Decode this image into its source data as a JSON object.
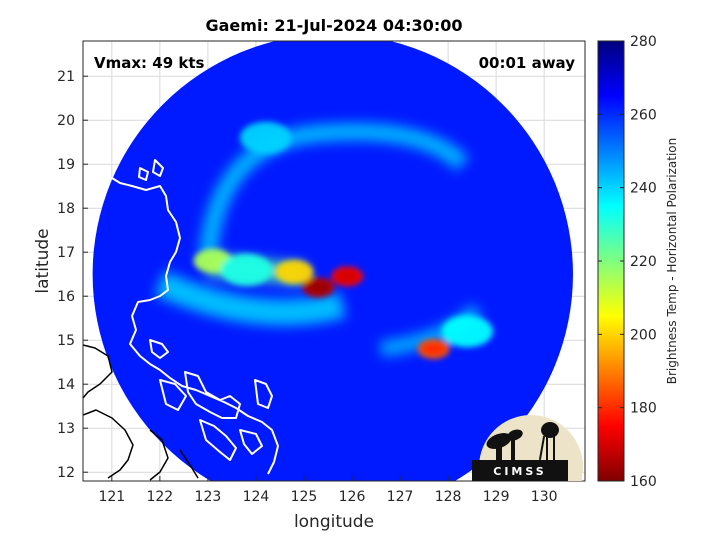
{
  "chart_data": {
    "type": "heatmap",
    "title": "Gaemi: 21-Jul-2024 04:30:00",
    "xlabel": "longitude",
    "ylabel": "latitude",
    "xlim": [
      120.4,
      130.85
    ],
    "ylim": [
      11.8,
      21.8
    ],
    "xticks": [
      121,
      122,
      123,
      124,
      125,
      126,
      127,
      128,
      129,
      130
    ],
    "yticks": [
      12,
      13,
      14,
      15,
      16,
      17,
      18,
      19,
      20,
      21
    ],
    "grid": true,
    "annotations": {
      "vmax": "Vmax: 49 kts",
      "time_offset": "00:01 away"
    },
    "colorbar": {
      "label": "Brightness Temp - Horizontal Polarization",
      "range": [
        160,
        280
      ],
      "ticks": [
        160,
        180,
        200,
        220,
        240,
        260,
        280
      ],
      "colormap": "jet"
    },
    "field": {
      "swath_center": [
        125.6,
        16.5
      ],
      "swath_radius_deg": 5.0,
      "background": 262,
      "features": [
        {
          "lon": 125.3,
          "lat": 16.2,
          "value": 168
        },
        {
          "lon": 125.9,
          "lat": 16.45,
          "value": 175
        },
        {
          "lon": 124.8,
          "lat": 16.55,
          "value": 200
        },
        {
          "lon": 127.7,
          "lat": 14.8,
          "value": 185
        },
        {
          "lon": 123.1,
          "lat": 16.8,
          "value": 215
        },
        {
          "lon": 123.8,
          "lat": 16.6,
          "value": 232
        },
        {
          "lon": 128.4,
          "lat": 15.2,
          "value": 235
        },
        {
          "lon": 124.2,
          "lat": 19.6,
          "value": 240
        }
      ]
    },
    "logo": {
      "text": "CIMSS"
    }
  }
}
